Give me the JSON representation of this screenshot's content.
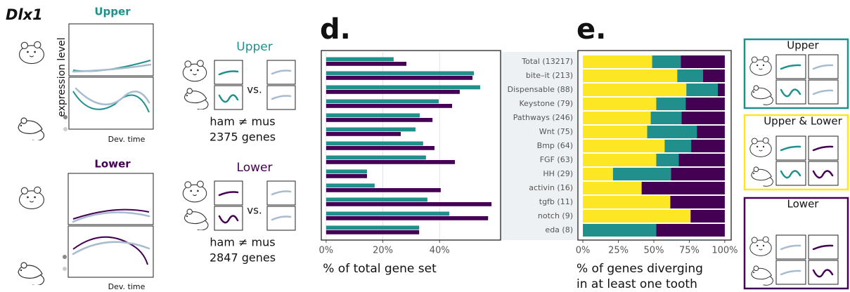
{
  "left_panel": {
    "gene": "Dlx1",
    "upper_title": "Upper",
    "lower_title": "Lower",
    "y_label": "expression level",
    "x_label_upper": "Dev. time",
    "x_label_lower": "Dev. time"
  },
  "comparisons": [
    {
      "title": "Upper",
      "vs": "vs.",
      "test": "ham ≠ mus",
      "genes": "2375 genes"
    },
    {
      "title": "Lower",
      "vs": "vs.",
      "test": "ham ≠ mus",
      "genes": "2847 genes"
    }
  ],
  "chart_data": [
    {
      "type": "bar",
      "panel_label": "d.",
      "xlabel": "% of total gene set",
      "categories": [
        "Total (13217)",
        "bite–it (213)",
        "Dispensable (88)",
        "Keystone (79)",
        "Pathways (246)",
        "Wnt (75)",
        "Bmp (64)",
        "FGF (63)",
        "HH (29)",
        "activin (16)",
        "tgfb (11)",
        "notch (9)",
        "eda (8)"
      ],
      "series": [
        {
          "color": "#21908c",
          "values": [
            23.8,
            52.1,
            54.3,
            39.7,
            33.0,
            31.5,
            34.2,
            35.2,
            14.4,
            17.1,
            35.7,
            43.4,
            32.8
          ]
        },
        {
          "color": "#440154",
          "values": [
            28.3,
            51.6,
            47.1,
            44.4,
            37.5,
            26.3,
            38.2,
            45.4,
            14.4,
            40.4,
            58.3,
            57.1,
            32.8
          ]
        }
      ],
      "xlim": [
        -1.7,
        61.5
      ],
      "xticks": [
        {
          "value": 0,
          "label": "0%"
        },
        {
          "value": 20,
          "label": "20%"
        },
        {
          "value": 40,
          "label": "40%"
        }
      ],
      "grid": true
    },
    {
      "type": "stacked_bar",
      "panel_label": "e.",
      "xlabel": [
        "% of genes diverging",
        "in at least one tooth"
      ],
      "series": [
        {
          "name": "Upper & Lower",
          "color": "#fde725",
          "values": [
            48.8,
            66.5,
            72.9,
            51.7,
            47.8,
            45.3,
            57.6,
            51.7,
            21.2,
            41.4,
            61.6,
            75.9,
            0
          ]
        },
        {
          "name": "Upper",
          "color": "#21908c",
          "values": [
            20.2,
            18.2,
            22.2,
            20.7,
            21.7,
            35.0,
            18.7,
            15.8,
            40.9,
            0,
            0,
            0,
            51.7
          ]
        },
        {
          "name": "Lower",
          "color": "#440154",
          "values": [
            31.0,
            15.3,
            4.9,
            27.6,
            30.5,
            19.7,
            23.7,
            32.5,
            37.9,
            58.6,
            38.4,
            24.1,
            48.3
          ]
        }
      ],
      "xlim": [
        -3.5,
        104.5
      ],
      "xticks": [
        {
          "value": 0,
          "label": "0%"
        },
        {
          "value": 25,
          "label": "25%"
        },
        {
          "value": 50,
          "label": "50%"
        },
        {
          "value": 75,
          "label": "75%"
        },
        {
          "value": 100,
          "label": "100%"
        }
      ],
      "legend": "right"
    }
  ]
}
